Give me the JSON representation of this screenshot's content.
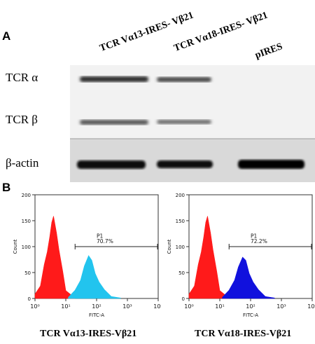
{
  "panel_a": {
    "letter": "A",
    "lanes": [
      "TCR Vα13-IRES- Vβ21",
      "TCR Vα18-IRES- Vβ21",
      "pIRES"
    ],
    "rows": [
      "TCR α",
      "TCR β",
      "β-actin"
    ]
  },
  "panel_b": {
    "letter": "B",
    "captions": [
      "TCR Vα13-IRES-Vβ21",
      "TCR Vα18-IRES-Vβ21"
    ]
  },
  "chart_data": [
    {
      "type": "area",
      "xscale": "log",
      "xlim": [
        1,
        10000
      ],
      "ylim": [
        0,
        200
      ],
      "xlabel": "FITC-A",
      "ylabel": "Count",
      "x_ticks": [
        "10⁰",
        "10¹",
        "10²",
        "10³",
        "10⁴"
      ],
      "y_ticks": [
        "0",
        "50",
        "100",
        "150",
        "200"
      ],
      "gate": {
        "name": "P1",
        "percent": "70.7%",
        "range": [
          20,
          10000
        ]
      },
      "colors": {
        "control": "#ff1a1a",
        "sample": "#22c4ee"
      },
      "series": [
        {
          "role": "control",
          "points": [
            [
              1,
              5
            ],
            [
              1.5,
              28
            ],
            [
              2,
              62
            ],
            [
              2.5,
              92
            ],
            [
              3,
              118
            ],
            [
              3.5,
              145
            ],
            [
              4,
              162
            ],
            [
              5,
              130
            ],
            [
              6,
              95
            ],
            [
              8,
              48
            ],
            [
              10,
              18
            ],
            [
              15,
              5
            ],
            [
              20,
              1
            ]
          ]
        },
        {
          "role": "sample",
          "points": [
            [
              12,
              2
            ],
            [
              20,
              12
            ],
            [
              30,
              38
            ],
            [
              40,
              62
            ],
            [
              55,
              85
            ],
            [
              70,
              70
            ],
            [
              90,
              50
            ],
            [
              120,
              30
            ],
            [
              180,
              14
            ],
            [
              300,
              5
            ],
            [
              600,
              1
            ]
          ]
        }
      ]
    },
    {
      "type": "area",
      "xscale": "log",
      "xlim": [
        1,
        10000
      ],
      "ylim": [
        0,
        200
      ],
      "xlabel": "FITC-A",
      "ylabel": "Count",
      "x_ticks": [
        "10⁰",
        "10¹",
        "10²",
        "10³",
        "10⁴"
      ],
      "y_ticks": [
        "0",
        "50",
        "100",
        "150",
        "200"
      ],
      "gate": {
        "name": "P1",
        "percent": "72.2%",
        "range": [
          20,
          10000
        ]
      },
      "colors": {
        "control": "#ff1a1a",
        "sample": "#1111dd"
      },
      "series": [
        {
          "role": "control",
          "points": [
            [
              1,
              5
            ],
            [
              1.5,
              28
            ],
            [
              2,
              62
            ],
            [
              2.5,
              92
            ],
            [
              3,
              118
            ],
            [
              3.5,
              145
            ],
            [
              4,
              162
            ],
            [
              5,
              130
            ],
            [
              6,
              95
            ],
            [
              8,
              48
            ],
            [
              10,
              18
            ],
            [
              15,
              5
            ],
            [
              20,
              1
            ]
          ]
        },
        {
          "role": "sample",
          "points": [
            [
              12,
              2
            ],
            [
              20,
              12
            ],
            [
              30,
              38
            ],
            [
              40,
              60
            ],
            [
              55,
              82
            ],
            [
              70,
              70
            ],
            [
              90,
              50
            ],
            [
              120,
              30
            ],
            [
              180,
              14
            ],
            [
              300,
              5
            ],
            [
              600,
              1
            ]
          ]
        }
      ]
    }
  ]
}
